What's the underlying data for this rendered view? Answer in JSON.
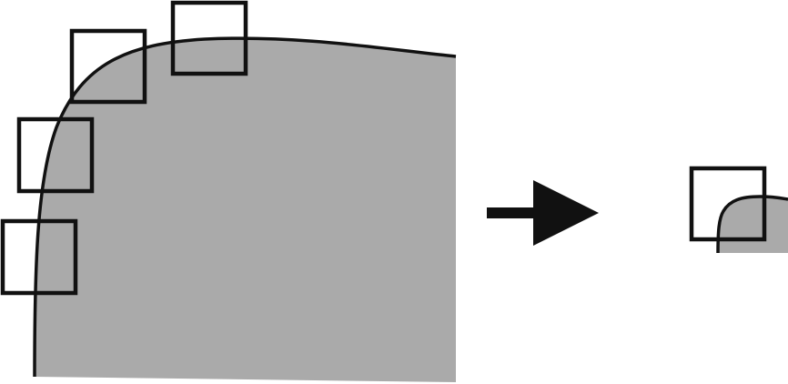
{
  "diagram": {
    "description_free": true,
    "colors": {
      "region_fill": "#aaaaaa",
      "stroke": "#111111",
      "background": "#ffffff",
      "arrow": "#111111"
    },
    "left_panel": {
      "window_count": 4
    },
    "right_panel": {
      "window_count": 1
    },
    "icons": {
      "arrow": "right-arrow-icon"
    }
  }
}
